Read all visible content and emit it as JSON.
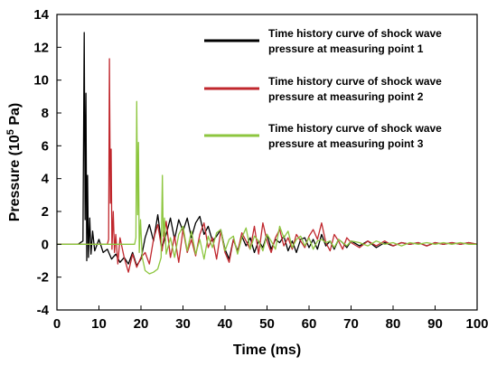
{
  "chart_data": {
    "type": "line",
    "title": "",
    "xlabel": "Time (ms)",
    "ylabel_parts": [
      "Pressure (10",
      "5",
      " Pa)"
    ],
    "xlim": [
      0,
      100
    ],
    "ylim": [
      -4,
      14
    ],
    "xticks": [
      0,
      10,
      20,
      30,
      40,
      50,
      60,
      70,
      80,
      90,
      100
    ],
    "yticks": [
      -4,
      -2,
      0,
      2,
      4,
      6,
      8,
      10,
      12,
      14
    ],
    "grid": false,
    "legend_position": "top-right",
    "series": [
      {
        "name_lines": [
          "Time history curve of shock wave",
          "pressure at measuring point 1"
        ],
        "color": "#000000",
        "x": [
          0,
          5,
          6.2,
          6.5,
          6.7,
          6.9,
          7.1,
          7.3,
          7.5,
          7.8,
          8.1,
          8.5,
          9,
          10,
          11,
          12,
          13,
          14,
          15,
          16,
          17,
          18,
          19,
          20,
          21,
          22,
          23,
          24,
          25,
          26,
          27,
          28,
          29,
          30,
          31,
          32,
          33,
          34,
          35,
          36,
          37,
          38,
          39,
          40,
          41,
          42,
          43,
          44,
          45,
          46,
          47,
          48,
          49,
          50,
          51,
          52,
          53,
          54,
          55,
          56,
          57,
          58,
          59,
          60,
          61,
          62,
          63,
          64,
          65,
          66,
          67,
          68,
          69,
          70,
          72,
          74,
          76,
          78,
          80,
          82,
          84,
          86,
          88,
          90,
          92,
          94,
          96,
          98,
          100
        ],
        "y": [
          0,
          0,
          0.2,
          12.9,
          1.5,
          9.2,
          -1.0,
          4.2,
          -0.8,
          1.6,
          -0.6,
          0.8,
          -0.4,
          0.3,
          -0.5,
          -0.3,
          -0.9,
          -0.6,
          -1.1,
          -0.8,
          -1.2,
          -0.5,
          -1.3,
          -0.9,
          0.4,
          1.2,
          0.2,
          1.8,
          -0.2,
          0.6,
          1.6,
          0.3,
          1.5,
          0.8,
          1.6,
          0.4,
          1.3,
          1.7,
          0.6,
          1.1,
          0.2,
          0.5,
          0.9,
          -0.3,
          -0.9,
          0.3,
          -0.4,
          0.5,
          -0.1,
          0.4,
          -0.5,
          0.2,
          -0.2,
          0.6,
          -0.3,
          0.3,
          0.1,
          0.5,
          -0.4,
          0.2,
          -0.5,
          0.3,
          0.4,
          -0.2,
          0.3,
          -0.3,
          0.6,
          -0.1,
          0.2,
          -0.3,
          0.3,
          0.1,
          -0.2,
          0.2,
          -0.1,
          0.2,
          -0.2,
          0.1,
          -0.1,
          0.1,
          0,
          0.1,
          -0.1,
          0.1,
          0,
          0.1,
          0,
          0.1,
          0
        ]
      },
      {
        "name_lines": [
          "Time history curve of shock wave",
          "pressure at measuring point 2"
        ],
        "color": "#c0272d",
        "x": [
          0,
          12,
          12.3,
          12.5,
          12.7,
          12.9,
          13.1,
          13.4,
          13.7,
          14,
          14.5,
          15,
          16,
          17,
          18,
          19,
          20,
          21,
          22,
          23,
          24,
          25,
          26,
          27,
          28,
          29,
          30,
          31,
          32,
          33,
          34,
          35,
          36,
          37,
          38,
          39,
          40,
          41,
          42,
          43,
          44,
          45,
          46,
          47,
          48,
          49,
          50,
          51,
          52,
          53,
          54,
          55,
          56,
          57,
          58,
          59,
          60,
          61,
          62,
          63,
          64,
          65,
          66,
          67,
          68,
          69,
          70,
          72,
          74,
          76,
          78,
          80,
          82,
          84,
          86,
          88,
          90,
          92,
          94,
          96,
          98,
          100
        ],
        "y": [
          0,
          0,
          0.3,
          11.3,
          2.5,
          5.8,
          -0.3,
          2.0,
          -0.5,
          0.6,
          -1.2,
          0.4,
          -0.8,
          -1.7,
          -0.6,
          -1.4,
          -0.8,
          -0.5,
          -1.2,
          0.3,
          1.2,
          -0.4,
          1.4,
          -0.8,
          0.5,
          -1.1,
          0.9,
          -0.5,
          0.3,
          -0.7,
          0.6,
          1.3,
          -0.2,
          0.4,
          -0.9,
          0.8,
          -0.5,
          -1.1,
          0.3,
          -0.5,
          0.7,
          0.2,
          -0.3,
          1.1,
          -0.6,
          1.3,
          0.2,
          -0.5,
          0.4,
          0.9,
          -0.1,
          0.4,
          -0.3,
          0.6,
          0.2,
          -0.2,
          0.5,
          0.9,
          0.3,
          1.3,
          0.1,
          -0.4,
          0.6,
          0.2,
          -0.3,
          0.4,
          0.1,
          -0.2,
          0.2,
          -0.1,
          0.2,
          -0.1,
          0.1,
          0,
          0.1,
          -0.1,
          0.1,
          0,
          0.1,
          0,
          0.1,
          0
        ]
      },
      {
        "name_lines": [
          "Time history curve of shock wave",
          "pressure at measuring point 3"
        ],
        "color": "#8dc63f",
        "x": [
          0,
          18.5,
          18.8,
          19.0,
          19.2,
          19.4,
          19.6,
          19.9,
          20.3,
          21,
          22,
          23,
          24,
          24.8,
          25.1,
          25.3,
          25.6,
          26,
          27,
          28,
          29,
          30,
          31,
          32,
          33,
          34,
          35,
          36,
          37,
          38,
          39,
          40,
          41,
          42,
          43,
          44,
          45,
          46,
          47,
          48,
          49,
          50,
          51,
          52,
          53,
          54,
          55,
          56,
          57,
          58,
          59,
          60,
          61,
          62,
          63,
          64,
          65,
          66,
          67,
          68,
          69,
          70,
          72,
          74,
          76,
          78,
          80,
          82,
          84,
          86,
          88,
          90,
          92,
          94,
          96,
          98,
          100
        ],
        "y": [
          0,
          0,
          0.4,
          8.7,
          1.8,
          6.2,
          -0.5,
          1.5,
          -0.8,
          -1.6,
          -1.8,
          -1.7,
          -1.5,
          -0.8,
          4.2,
          0.5,
          1.6,
          -0.6,
          0.4,
          -0.8,
          0.6,
          1.1,
          -0.4,
          0.8,
          -0.6,
          0.3,
          -0.9,
          0.5,
          -0.2,
          0.7,
          0.9,
          -0.4,
          0.3,
          0.5,
          -0.6,
          0.4,
          1.0,
          -0.3,
          0.5,
          0.2,
          -0.4,
          0.6,
          0.2,
          -0.3,
          1.1,
          0.4,
          0.8,
          -0.2,
          0.3,
          0.5,
          -0.1,
          0.4,
          -0.3,
          0.2,
          0.3,
          0.1,
          0.2,
          -0.2,
          0.3,
          0.1,
          -0.1,
          0.2,
          0.1,
          -0.1,
          0.2,
          0,
          0.1,
          -0.1,
          0.1,
          0,
          0.1,
          0,
          0.1,
          0,
          0.1,
          0,
          0
        ]
      }
    ]
  }
}
